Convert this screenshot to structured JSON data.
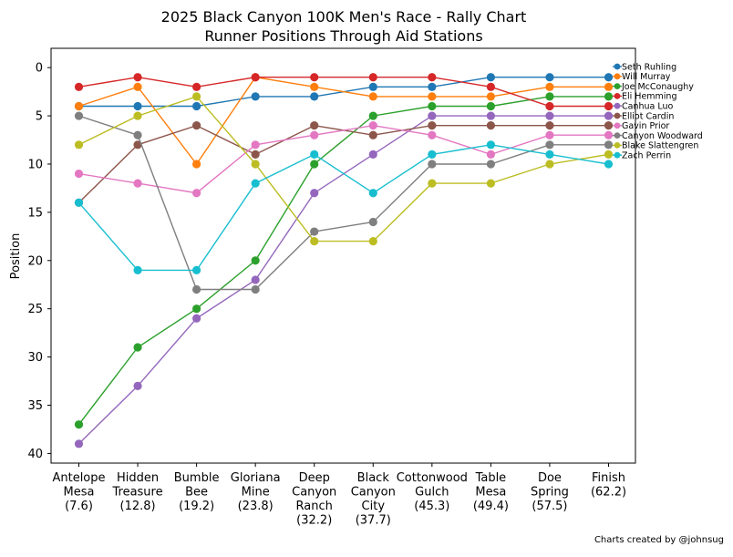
{
  "chart_data": {
    "type": "line",
    "title": "2025 Black Canyon 100K Men's Race - Rally Chart",
    "subtitle": "Runner Positions Through Aid Stations",
    "xlabel": "",
    "ylabel": "Position",
    "ylim": [
      41,
      -2
    ],
    "yticks": [
      0,
      5,
      10,
      15,
      20,
      25,
      30,
      35,
      40
    ],
    "grid": false,
    "legend_placement": "right",
    "credit": "Charts created by @johnsug",
    "categories": [
      [
        "Antelope",
        "Mesa",
        "(7.6)"
      ],
      [
        "Hidden",
        "Treasure",
        "(12.8)"
      ],
      [
        "Bumble",
        "Bee",
        "(19.2)"
      ],
      [
        "Gloriana",
        "Mine",
        "(23.8)"
      ],
      [
        "Deep",
        "Canyon",
        "Ranch",
        "(32.2)"
      ],
      [
        "Black",
        "Canyon",
        "City",
        "(37.7)"
      ],
      [
        "Cottonwood",
        "Gulch",
        "(45.3)"
      ],
      [
        "Table",
        "Mesa",
        "(49.4)"
      ],
      [
        "Doe",
        "Spring",
        "(57.5)"
      ],
      [
        "Finish",
        "(62.2)"
      ]
    ],
    "series": [
      {
        "name": "Seth Ruhling",
        "color": "#1f77b4",
        "values": [
          4,
          4,
          4,
          3,
          3,
          2,
          2,
          1,
          1,
          1
        ]
      },
      {
        "name": "Will Murray",
        "color": "#ff7f0e",
        "values": [
          4,
          2,
          10,
          1,
          2,
          3,
          3,
          3,
          2,
          2
        ]
      },
      {
        "name": "Joe McConaughy",
        "color": "#2ca02c",
        "values": [
          37,
          29,
          25,
          20,
          10,
          5,
          4,
          4,
          3,
          3
        ]
      },
      {
        "name": "Eli Hemming",
        "color": "#d62728",
        "values": [
          2,
          1,
          2,
          1,
          1,
          1,
          1,
          2,
          4,
          4
        ]
      },
      {
        "name": "Canhua Luo",
        "color": "#9467bd",
        "values": [
          39,
          33,
          26,
          22,
          13,
          9,
          5,
          5,
          5,
          5
        ]
      },
      {
        "name": "Elliot Cardin",
        "color": "#8c564b",
        "values": [
          14,
          8,
          6,
          9,
          6,
          7,
          6,
          6,
          6,
          6
        ]
      },
      {
        "name": "Gavin Prior",
        "color": "#e377c2",
        "values": [
          11,
          12,
          13,
          8,
          7,
          6,
          7,
          9,
          7,
          7
        ]
      },
      {
        "name": "Canyon Woodward",
        "color": "#7f7f7f",
        "values": [
          5,
          7,
          23,
          23,
          17,
          16,
          10,
          10,
          8,
          8
        ]
      },
      {
        "name": "Blake Slattengren",
        "color": "#bcbd22",
        "values": [
          8,
          5,
          3,
          10,
          18,
          18,
          12,
          12,
          10,
          9
        ]
      },
      {
        "name": "Zach Perrin",
        "color": "#17becf",
        "values": [
          14,
          21,
          21,
          12,
          9,
          13,
          9,
          8,
          9,
          10
        ]
      }
    ]
  }
}
